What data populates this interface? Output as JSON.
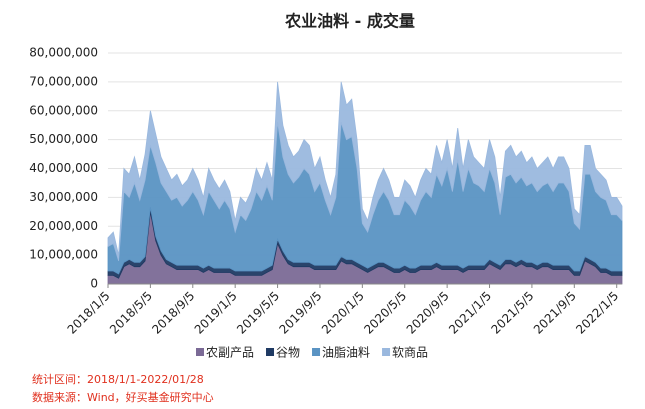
{
  "chart_data": {
    "type": "stacked_area",
    "title": "农业油料 - 成交量",
    "categories": [
      "2018/1/5",
      null,
      null,
      null,
      null,
      null,
      null,
      null,
      "2018/5/5",
      null,
      null,
      null,
      null,
      null,
      null,
      null,
      "2018/9/5",
      null,
      null,
      null,
      null,
      null,
      null,
      null,
      "2019/1/5",
      null,
      null,
      null,
      null,
      null,
      null,
      null,
      "2019/5/5",
      null,
      null,
      null,
      null,
      null,
      null,
      null,
      "2019/9/5",
      null,
      null,
      null,
      null,
      null,
      null,
      null,
      "2020/1/5",
      null,
      null,
      null,
      null,
      null,
      null,
      null,
      "2020/5/5",
      null,
      null,
      null,
      null,
      null,
      null,
      null,
      "2020/9/5",
      null,
      null,
      null,
      null,
      null,
      null,
      null,
      "2021/1/5",
      null,
      null,
      null,
      null,
      null,
      null,
      null,
      "2021/5/5",
      null,
      null,
      null,
      null,
      null,
      null,
      null,
      "2021/9/5",
      null,
      null,
      null,
      null,
      null,
      null,
      null,
      "2022/1/5",
      null
    ],
    "series": [
      {
        "name": "农副产品",
        "color": "#7b6a96",
        "values": [
          3000000,
          3000000,
          2000000,
          6000000,
          7000000,
          6000000,
          6000000,
          8000000,
          25000000,
          15000000,
          10000000,
          7000000,
          6000000,
          5000000,
          5000000,
          5000000,
          5000000,
          5000000,
          4000000,
          5000000,
          4000000,
          4000000,
          4000000,
          4000000,
          3000000,
          3000000,
          3000000,
          3000000,
          3000000,
          3000000,
          4000000,
          5000000,
          14000000,
          10000000,
          7000000,
          6000000,
          6000000,
          6000000,
          6000000,
          5000000,
          5000000,
          5000000,
          5000000,
          5000000,
          8000000,
          7000000,
          7000000,
          6000000,
          5000000,
          4000000,
          5000000,
          6000000,
          6000000,
          5000000,
          4000000,
          4000000,
          5000000,
          4000000,
          4000000,
          5000000,
          5000000,
          5000000,
          6000000,
          5000000,
          5000000,
          5000000,
          5000000,
          4000000,
          5000000,
          5000000,
          5000000,
          5000000,
          7000000,
          6000000,
          5000000,
          7000000,
          7000000,
          6000000,
          7000000,
          6000000,
          6000000,
          5000000,
          6000000,
          6000000,
          5000000,
          5000000,
          5000000,
          5000000,
          3000000,
          3000000,
          8000000,
          7000000,
          6000000,
          4000000,
          4000000,
          3000000,
          3000000,
          3000000
        ]
      },
      {
        "name": "谷物",
        "color": "#1f3a63",
        "values": [
          1500000,
          1500000,
          1500000,
          1500000,
          1500000,
          1500000,
          1500000,
          1500000,
          1500000,
          1500000,
          1500000,
          1500000,
          1500000,
          1500000,
          1500000,
          1500000,
          1500000,
          1500000,
          1500000,
          1500000,
          1500000,
          1500000,
          1500000,
          1500000,
          1500000,
          1500000,
          1500000,
          1500000,
          1500000,
          1500000,
          1500000,
          1500000,
          1500000,
          1500000,
          1500000,
          1500000,
          1500000,
          1500000,
          1500000,
          1500000,
          1500000,
          1500000,
          1500000,
          1500000,
          1500000,
          1500000,
          1500000,
          1500000,
          1500000,
          1500000,
          1500000,
          1500000,
          1500000,
          1500000,
          1500000,
          1500000,
          1500000,
          1500000,
          1500000,
          1500000,
          1500000,
          1500000,
          1500000,
          1500000,
          1500000,
          1500000,
          1500000,
          1500000,
          1500000,
          1500000,
          1500000,
          1500000,
          1500000,
          1500000,
          1500000,
          1500000,
          1500000,
          1500000,
          1500000,
          1500000,
          1500000,
          1500000,
          1500000,
          1500000,
          1500000,
          1500000,
          1500000,
          1500000,
          1500000,
          1500000,
          1500000,
          1500000,
          1500000,
          1500000,
          1500000,
          1500000,
          1500000,
          1500000
        ]
      },
      {
        "name": "油脂油料",
        "color": "#5a93c3",
        "values": [
          8500000,
          9500000,
          4500000,
          24500000,
          21500000,
          27500000,
          21500000,
          26500000,
          21500000,
          25500000,
          23500000,
          23500000,
          21500000,
          23500000,
          20500000,
          22500000,
          25500000,
          22500000,
          18500000,
          25500000,
          23500000,
          20500000,
          23500000,
          20500000,
          13500000,
          19500000,
          17500000,
          21500000,
          27500000,
          24500000,
          28500000,
          22500000,
          40500000,
          32500000,
          29500000,
          27500000,
          29500000,
          32500000,
          30500000,
          25500000,
          28500000,
          22500000,
          17500000,
          23500000,
          46500000,
          41500000,
          42500000,
          32500000,
          14500000,
          12500000,
          17500000,
          21500000,
          24500000,
          22500000,
          18500000,
          18500000,
          22500000,
          21500000,
          18500000,
          22500000,
          25500000,
          23500000,
          30500000,
          27500000,
          33500000,
          25500000,
          36500000,
          26500000,
          33500000,
          28500000,
          27500000,
          25500000,
          31500000,
          27500000,
          17500000,
          28500000,
          29500000,
          27500000,
          28500000,
          26500000,
          27500000,
          25500000,
          26500000,
          27500000,
          25500000,
          28500000,
          28500000,
          25500000,
          16500000,
          14500000,
          28500000,
          29500000,
          24500000,
          24500000,
          23500000,
          19500000,
          19500000,
          17500000
        ]
      },
      {
        "name": "软商品",
        "color": "#9ab8de",
        "values": [
          3000000,
          4000000,
          2000000,
          8000000,
          8000000,
          9000000,
          7000000,
          9000000,
          12000000,
          10000000,
          9000000,
          8000000,
          7000000,
          8000000,
          7000000,
          7000000,
          8000000,
          7000000,
          6000000,
          8000000,
          7000000,
          7000000,
          7000000,
          6000000,
          4000000,
          6000000,
          6000000,
          6000000,
          8000000,
          7000000,
          8000000,
          7000000,
          14000000,
          11000000,
          10000000,
          9000000,
          9000000,
          10000000,
          10000000,
          8000000,
          9000000,
          7000000,
          6000000,
          8000000,
          14000000,
          12000000,
          13000000,
          10000000,
          5000000,
          4000000,
          6000000,
          7000000,
          8000000,
          7000000,
          6000000,
          6000000,
          7000000,
          7000000,
          6000000,
          7000000,
          8000000,
          8000000,
          10000000,
          8000000,
          10000000,
          8000000,
          11000000,
          8000000,
          10000000,
          9000000,
          8000000,
          8000000,
          10000000,
          9000000,
          6000000,
          9000000,
          10000000,
          9000000,
          9000000,
          8000000,
          9000000,
          8000000,
          8000000,
          9000000,
          8000000,
          9000000,
          9000000,
          8000000,
          5000000,
          5000000,
          10000000,
          10000000,
          8000000,
          8000000,
          7000000,
          6000000,
          6000000,
          5000000
        ]
      }
    ],
    "ylim": [
      0,
      80000000
    ],
    "yticks": [
      0,
      {
        "value": 10000000,
        "label": "10,000,000"
      },
      {
        "value": 20000000,
        "label": "20,000,000"
      },
      {
        "value": 30000000,
        "label": "30,000,000"
      },
      {
        "value": 40000000,
        "label": "40,000,000"
      },
      {
        "value": 50000000,
        "label": "50,000,000"
      },
      {
        "value": 60000000,
        "label": "60,000,000"
      },
      {
        "value": 70000000,
        "label": "70,000,000"
      },
      {
        "value": 80000000,
        "label": "80,000,000"
      }
    ],
    "grid": true,
    "legend": "bottom",
    "footnotes": [
      "统计区间：2018/1/1-2022/01/28",
      "数据来源：Wind，好买基金研究中心"
    ]
  }
}
